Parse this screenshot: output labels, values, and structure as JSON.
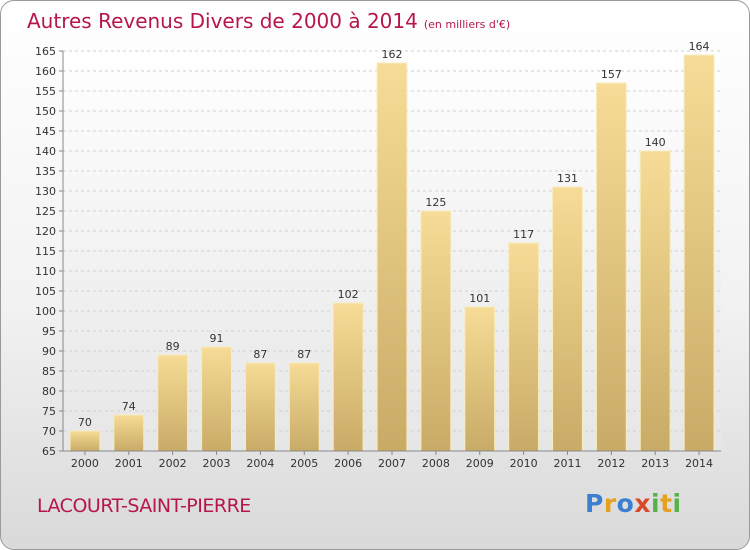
{
  "header": {
    "title": "Autres Revenus Divers de 2000 à 2014",
    "unit": "(en milliers d'€)"
  },
  "footer": {
    "place": "LACOURT-SAINT-PIERRE",
    "logo": "Proxiti"
  },
  "chart_data": {
    "type": "bar",
    "title": "Autres Revenus Divers de 2000 à 2014",
    "subtitle": "(en milliers d'€)",
    "categories": [
      "2000",
      "2001",
      "2002",
      "2003",
      "2004",
      "2005",
      "2006",
      "2007",
      "2008",
      "2009",
      "2010",
      "2011",
      "2012",
      "2013",
      "2014"
    ],
    "values": [
      70,
      74,
      89,
      91,
      87,
      87,
      102,
      162,
      125,
      101,
      117,
      131,
      157,
      140,
      164
    ],
    "ylim": [
      65,
      165
    ],
    "yticks": [
      65,
      70,
      75,
      80,
      85,
      90,
      95,
      100,
      105,
      110,
      115,
      120,
      125,
      130,
      135,
      140,
      145,
      150,
      155,
      160,
      165
    ],
    "grid": true,
    "bar_color": "#e8c97a"
  }
}
